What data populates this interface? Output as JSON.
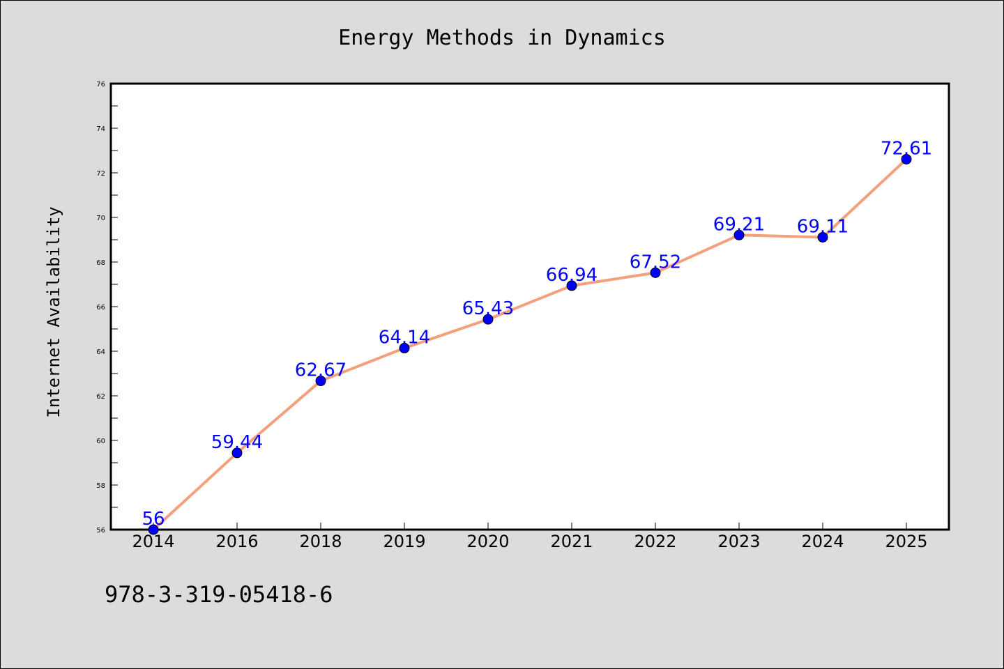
{
  "chart_data": {
    "type": "line",
    "title": "Energy Methods in Dynamics",
    "xlabel": "",
    "ylabel": "Internet Availability",
    "categories": [
      "2014",
      "2016",
      "2018",
      "2019",
      "2020",
      "2021",
      "2022",
      "2023",
      "2024",
      "2025"
    ],
    "series": [
      {
        "values": [
          56,
          59.44,
          62.67,
          64.14,
          65.43,
          66.94,
          67.52,
          69.21,
          69.11,
          72.61
        ],
        "data_labels": [
          "56",
          "59.44",
          "62.67",
          "64.14",
          "65.43",
          "66.94",
          "67.52",
          "69.21",
          "69.11",
          "72.61"
        ],
        "line_color": "#f4a07c",
        "marker_color": "#0000ff"
      }
    ],
    "ylim": [
      56,
      76
    ],
    "yticks": [
      "56",
      "58",
      "60",
      "62",
      "64",
      "66",
      "68",
      "70",
      "72",
      "74",
      "76"
    ],
    "grid": false,
    "legend": "none"
  },
  "footer_text": "978-3-319-05418-6",
  "colors": {
    "background": "#dcdcdc",
    "plot_background": "#ffffff",
    "line": "#f4a07c",
    "marker": "#0000ff",
    "data_label": "#0000ff"
  }
}
